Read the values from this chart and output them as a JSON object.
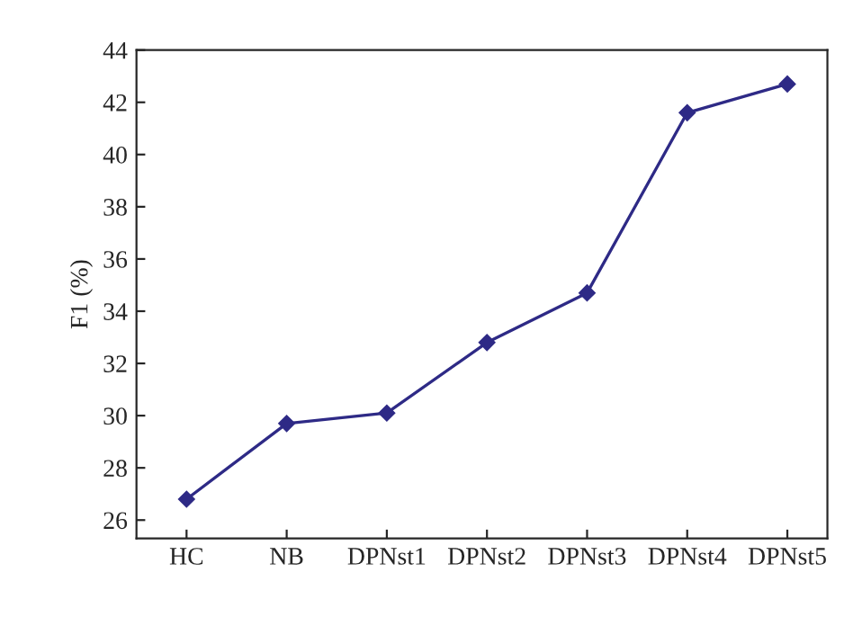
{
  "chart_data": {
    "type": "line",
    "ylabel": "F1 (%)",
    "categories": [
      "HC",
      "NB",
      "DPNst1",
      "DPNst2",
      "DPNst3",
      "DPNst4",
      "DPNst5"
    ],
    "series": [
      {
        "color": "#2e2a86",
        "values": [
          26.8,
          29.7,
          30.1,
          32.8,
          34.7,
          41.6,
          42.7
        ]
      }
    ],
    "ylim": [
      25.3,
      44
    ],
    "yticks": [
      26,
      28,
      30,
      32,
      34,
      36,
      38,
      40,
      42,
      44
    ],
    "marker": "diamond",
    "line_style": "solid",
    "grid": false,
    "legend": false
  }
}
